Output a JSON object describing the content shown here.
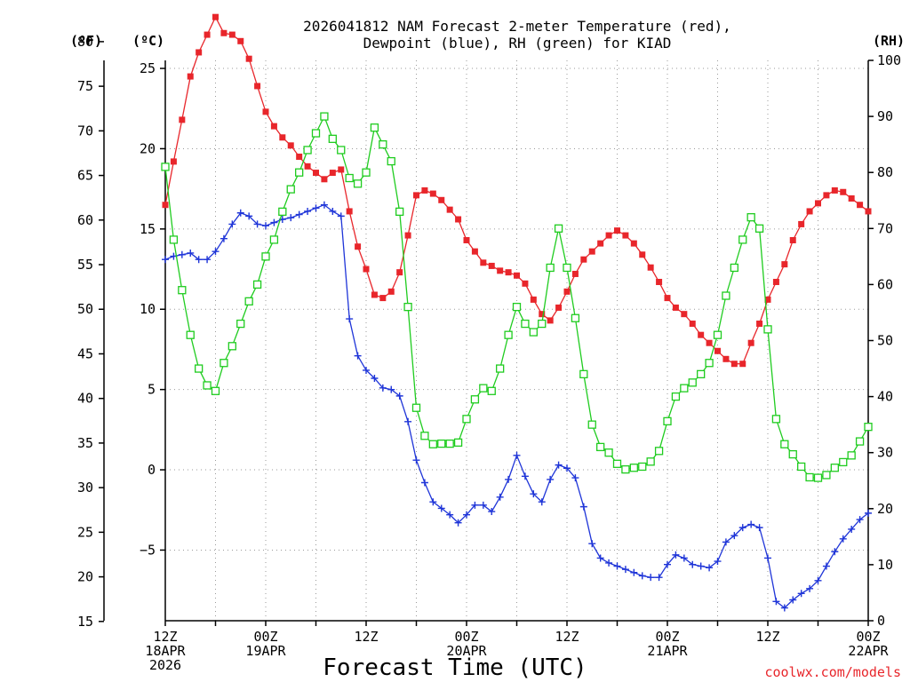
{
  "chart_data": {
    "type": "line",
    "title_line1": "2026041812 NAM Forecast 2-meter Temperature (red),",
    "title_line2": "Dewpoint (blue), RH (green) for KIAD",
    "xlabel": "Forecast Time (UTC)",
    "credit": "coolwx.com/models",
    "unit_labels": {
      "fahrenheit": "(ºF)",
      "celsius": "(ºC)",
      "rh": "(RH)"
    },
    "x_unit": "forecast hour",
    "xlim": [
      0,
      84
    ],
    "celsius_ylim": [
      -9.4,
      25.5
    ],
    "rh_ylim": [
      0,
      100
    ],
    "fahrenheit_ticks": [
      {
        "value": 15,
        "label": "15"
      },
      {
        "value": 20,
        "label": "20"
      },
      {
        "value": 25,
        "label": "25"
      },
      {
        "value": 30,
        "label": "30"
      },
      {
        "value": 35,
        "label": "35"
      },
      {
        "value": 40,
        "label": "40"
      },
      {
        "value": 45,
        "label": "45"
      },
      {
        "value": 50,
        "label": "50"
      },
      {
        "value": 55,
        "label": "55"
      },
      {
        "value": 60,
        "label": "60"
      },
      {
        "value": 65,
        "label": "65"
      },
      {
        "value": 70,
        "label": "70"
      },
      {
        "value": 75,
        "label": "75"
      },
      {
        "value": 80,
        "label": "80"
      }
    ],
    "celsius_ticks": [
      {
        "value": -5,
        "label": "−5"
      },
      {
        "value": 0,
        "label": "0"
      },
      {
        "value": 5,
        "label": "5"
      },
      {
        "value": 10,
        "label": "10"
      },
      {
        "value": 15,
        "label": "15"
      },
      {
        "value": 20,
        "label": "20"
      },
      {
        "value": 25,
        "label": "25"
      }
    ],
    "rh_ticks": [
      {
        "value": 0,
        "label": "0"
      },
      {
        "value": 10,
        "label": "10"
      },
      {
        "value": 20,
        "label": "20"
      },
      {
        "value": 30,
        "label": "30"
      },
      {
        "value": 40,
        "label": "40"
      },
      {
        "value": 50,
        "label": "50"
      },
      {
        "value": 60,
        "label": "60"
      },
      {
        "value": 70,
        "label": "70"
      },
      {
        "value": 80,
        "label": "80"
      },
      {
        "value": 90,
        "label": "90"
      },
      {
        "value": 100,
        "label": "100"
      }
    ],
    "x_ticks": [
      {
        "hour": 0,
        "lines": [
          "12Z",
          "18APR",
          "2026"
        ]
      },
      {
        "hour": 12,
        "lines": [
          "00Z",
          "19APR"
        ]
      },
      {
        "hour": 24,
        "lines": [
          "12Z"
        ]
      },
      {
        "hour": 36,
        "lines": [
          "00Z",
          "20APR"
        ]
      },
      {
        "hour": 48,
        "lines": [
          "12Z"
        ]
      },
      {
        "hour": 60,
        "lines": [
          "00Z",
          "21APR"
        ]
      },
      {
        "hour": 72,
        "lines": [
          "12Z"
        ]
      },
      {
        "hour": 84,
        "lines": [
          "00Z",
          "22APR"
        ]
      }
    ],
    "colors": {
      "temperature": "#e8262b",
      "dewpoint": "#1f35d8",
      "rh": "#1fcc1f"
    },
    "series": [
      {
        "name": "Temperature",
        "unit": "C",
        "values": [
          [
            0,
            16.5
          ],
          [
            1,
            19.2
          ],
          [
            2,
            21.8
          ],
          [
            3,
            24.5
          ],
          [
            4,
            26
          ],
          [
            5,
            27.1
          ],
          [
            6,
            28.2
          ],
          [
            7,
            27.2
          ],
          [
            8,
            27.1
          ],
          [
            9,
            26.7
          ],
          [
            10,
            25.6
          ],
          [
            11,
            23.9
          ],
          [
            12,
            22.3
          ],
          [
            13,
            21.4
          ],
          [
            14,
            20.7
          ],
          [
            15,
            20.2
          ],
          [
            16,
            19.5
          ],
          [
            17,
            18.9
          ],
          [
            18,
            18.5
          ],
          [
            19,
            18.1
          ],
          [
            20,
            18.5
          ],
          [
            21,
            18.7
          ],
          [
            22,
            16.1
          ],
          [
            23,
            13.9
          ],
          [
            24,
            12.5
          ],
          [
            25,
            10.9
          ],
          [
            26,
            10.7
          ],
          [
            27,
            11.1
          ],
          [
            28,
            12.3
          ],
          [
            29,
            14.6
          ],
          [
            30,
            17.1
          ],
          [
            31,
            17.4
          ],
          [
            32,
            17.2
          ],
          [
            33,
            16.8
          ],
          [
            34,
            16.2
          ],
          [
            35,
            15.6
          ],
          [
            36,
            14.3
          ],
          [
            37,
            13.6
          ],
          [
            38,
            12.9
          ],
          [
            39,
            12.7
          ],
          [
            40,
            12.4
          ],
          [
            41,
            12.3
          ],
          [
            42,
            12.1
          ],
          [
            43,
            11.6
          ],
          [
            44,
            10.6
          ],
          [
            45,
            9.7
          ],
          [
            46,
            9.3
          ],
          [
            47,
            10.1
          ],
          [
            48,
            11.1
          ],
          [
            49,
            12.2
          ],
          [
            50,
            13.1
          ],
          [
            51,
            13.6
          ],
          [
            52,
            14.1
          ],
          [
            53,
            14.6
          ],
          [
            54,
            14.9
          ],
          [
            55,
            14.6
          ],
          [
            56,
            14.1
          ],
          [
            57,
            13.4
          ],
          [
            58,
            12.6
          ],
          [
            59,
            11.7
          ],
          [
            60,
            10.7
          ],
          [
            61,
            10.1
          ],
          [
            62,
            9.7
          ],
          [
            63,
            9.1
          ],
          [
            64,
            8.4
          ],
          [
            65,
            7.9
          ],
          [
            66,
            7.4
          ],
          [
            67,
            6.9
          ],
          [
            68,
            6.6
          ],
          [
            69,
            6.6
          ],
          [
            70,
            7.9
          ],
          [
            71,
            9.1
          ],
          [
            72,
            10.6
          ],
          [
            73,
            11.7
          ],
          [
            74,
            12.8
          ],
          [
            75,
            14.3
          ],
          [
            76,
            15.3
          ],
          [
            77,
            16.1
          ],
          [
            78,
            16.6
          ],
          [
            79,
            17.1
          ],
          [
            80,
            17.4
          ],
          [
            81,
            17.3
          ],
          [
            82,
            16.9
          ],
          [
            83,
            16.5
          ],
          [
            84,
            16.1
          ]
        ]
      },
      {
        "name": "Dewpoint",
        "unit": "C",
        "values": [
          [
            0,
            13.1
          ],
          [
            1,
            13.3
          ],
          [
            2,
            13.4
          ],
          [
            3,
            13.5
          ],
          [
            4,
            13.1
          ],
          [
            5,
            13.1
          ],
          [
            6,
            13.6
          ],
          [
            7,
            14.4
          ],
          [
            8,
            15.3
          ],
          [
            9,
            16.0
          ],
          [
            10,
            15.8
          ],
          [
            11,
            15.3
          ],
          [
            12,
            15.2
          ],
          [
            13,
            15.4
          ],
          [
            14,
            15.6
          ],
          [
            15,
            15.7
          ],
          [
            16,
            15.9
          ],
          [
            17,
            16.1
          ],
          [
            18,
            16.3
          ],
          [
            19,
            16.5
          ],
          [
            20,
            16.1
          ],
          [
            21,
            15.8
          ],
          [
            22,
            9.4
          ],
          [
            23,
            7.1
          ],
          [
            24,
            6.2
          ],
          [
            25,
            5.7
          ],
          [
            26,
            5.1
          ],
          [
            27,
            5.0
          ],
          [
            28,
            4.6
          ],
          [
            29,
            3.0
          ],
          [
            30,
            0.6
          ],
          [
            31,
            -0.8
          ],
          [
            32,
            -2.0
          ],
          [
            33,
            -2.4
          ],
          [
            34,
            -2.8
          ],
          [
            35,
            -3.3
          ],
          [
            36,
            -2.8
          ],
          [
            37,
            -2.2
          ],
          [
            38,
            -2.2
          ],
          [
            39,
            -2.6
          ],
          [
            40,
            -1.7
          ],
          [
            41,
            -0.6
          ],
          [
            42,
            0.9
          ],
          [
            43,
            -0.4
          ],
          [
            44,
            -1.5
          ],
          [
            45,
            -2.0
          ],
          [
            46,
            -0.6
          ],
          [
            47,
            0.3
          ],
          [
            48,
            0.1
          ],
          [
            49,
            -0.5
          ],
          [
            50,
            -2.3
          ],
          [
            51,
            -4.6
          ],
          [
            52,
            -5.5
          ],
          [
            53,
            -5.8
          ],
          [
            54,
            -6.0
          ],
          [
            55,
            -6.2
          ],
          [
            56,
            -6.4
          ],
          [
            57,
            -6.6
          ],
          [
            58,
            -6.7
          ],
          [
            59,
            -6.7
          ],
          [
            60,
            -5.9
          ],
          [
            61,
            -5.3
          ],
          [
            62,
            -5.5
          ],
          [
            63,
            -5.9
          ],
          [
            64,
            -6.0
          ],
          [
            65,
            -6.1
          ],
          [
            66,
            -5.7
          ],
          [
            67,
            -4.5
          ],
          [
            68,
            -4.1
          ],
          [
            69,
            -3.6
          ],
          [
            70,
            -3.4
          ],
          [
            71,
            -3.6
          ],
          [
            72,
            -5.5
          ],
          [
            73,
            -8.2
          ],
          [
            74,
            -8.6
          ],
          [
            75,
            -8.1
          ],
          [
            76,
            -7.7
          ],
          [
            77,
            -7.4
          ],
          [
            78,
            -6.9
          ],
          [
            79,
            -6.0
          ],
          [
            80,
            -5.1
          ],
          [
            81,
            -4.3
          ],
          [
            82,
            -3.7
          ],
          [
            83,
            -3.1
          ],
          [
            84,
            -2.7
          ]
        ]
      },
      {
        "name": "RH",
        "unit": "%",
        "values": [
          [
            0,
            81
          ],
          [
            1,
            68
          ],
          [
            2,
            59
          ],
          [
            3,
            51
          ],
          [
            4,
            45
          ],
          [
            5,
            42
          ],
          [
            6,
            41
          ],
          [
            7,
            46
          ],
          [
            8,
            49
          ],
          [
            9,
            53
          ],
          [
            10,
            57
          ],
          [
            11,
            60
          ],
          [
            12,
            65
          ],
          [
            13,
            68
          ],
          [
            14,
            73
          ],
          [
            15,
            77
          ],
          [
            16,
            80
          ],
          [
            17,
            84
          ],
          [
            18,
            87
          ],
          [
            19,
            90
          ],
          [
            20,
            86
          ],
          [
            21,
            84
          ],
          [
            22,
            79
          ],
          [
            23,
            78
          ],
          [
            24,
            80
          ],
          [
            25,
            88
          ],
          [
            26,
            85
          ],
          [
            27,
            82
          ],
          [
            28,
            73
          ],
          [
            29,
            56
          ],
          [
            30,
            38
          ],
          [
            31,
            33
          ],
          [
            32,
            31.5
          ],
          [
            33,
            31.6
          ],
          [
            34,
            31.6
          ],
          [
            35,
            31.8
          ],
          [
            36,
            36
          ],
          [
            37,
            39.5
          ],
          [
            38,
            41.5
          ],
          [
            39,
            41
          ],
          [
            40,
            45
          ],
          [
            41,
            51
          ],
          [
            42,
            56
          ],
          [
            43,
            53
          ],
          [
            44,
            51.5
          ],
          [
            45,
            53
          ],
          [
            46,
            63
          ],
          [
            47,
            70
          ],
          [
            48,
            63
          ],
          [
            49,
            54
          ],
          [
            50,
            44
          ],
          [
            51,
            35
          ],
          [
            52,
            31
          ],
          [
            53,
            30
          ],
          [
            54,
            28
          ],
          [
            55,
            27
          ],
          [
            56,
            27.3
          ],
          [
            57,
            27.5
          ],
          [
            58,
            28.4
          ],
          [
            59,
            30.3
          ],
          [
            60,
            35.6
          ],
          [
            61,
            40
          ],
          [
            62,
            41.5
          ],
          [
            63,
            42.5
          ],
          [
            64,
            44
          ],
          [
            65,
            46
          ],
          [
            66,
            51
          ],
          [
            67,
            58
          ],
          [
            68,
            63
          ],
          [
            69,
            68
          ],
          [
            70,
            72
          ],
          [
            71,
            70
          ],
          [
            72,
            52
          ],
          [
            73,
            36
          ],
          [
            74,
            31.5
          ],
          [
            75,
            29.7
          ],
          [
            76,
            27.5
          ],
          [
            77,
            25.6
          ],
          [
            78,
            25.5
          ],
          [
            79,
            26
          ],
          [
            80,
            27.3
          ],
          [
            81,
            28.3
          ],
          [
            82,
            29.5
          ],
          [
            83,
            32
          ],
          [
            84,
            34.6
          ]
        ]
      }
    ]
  }
}
